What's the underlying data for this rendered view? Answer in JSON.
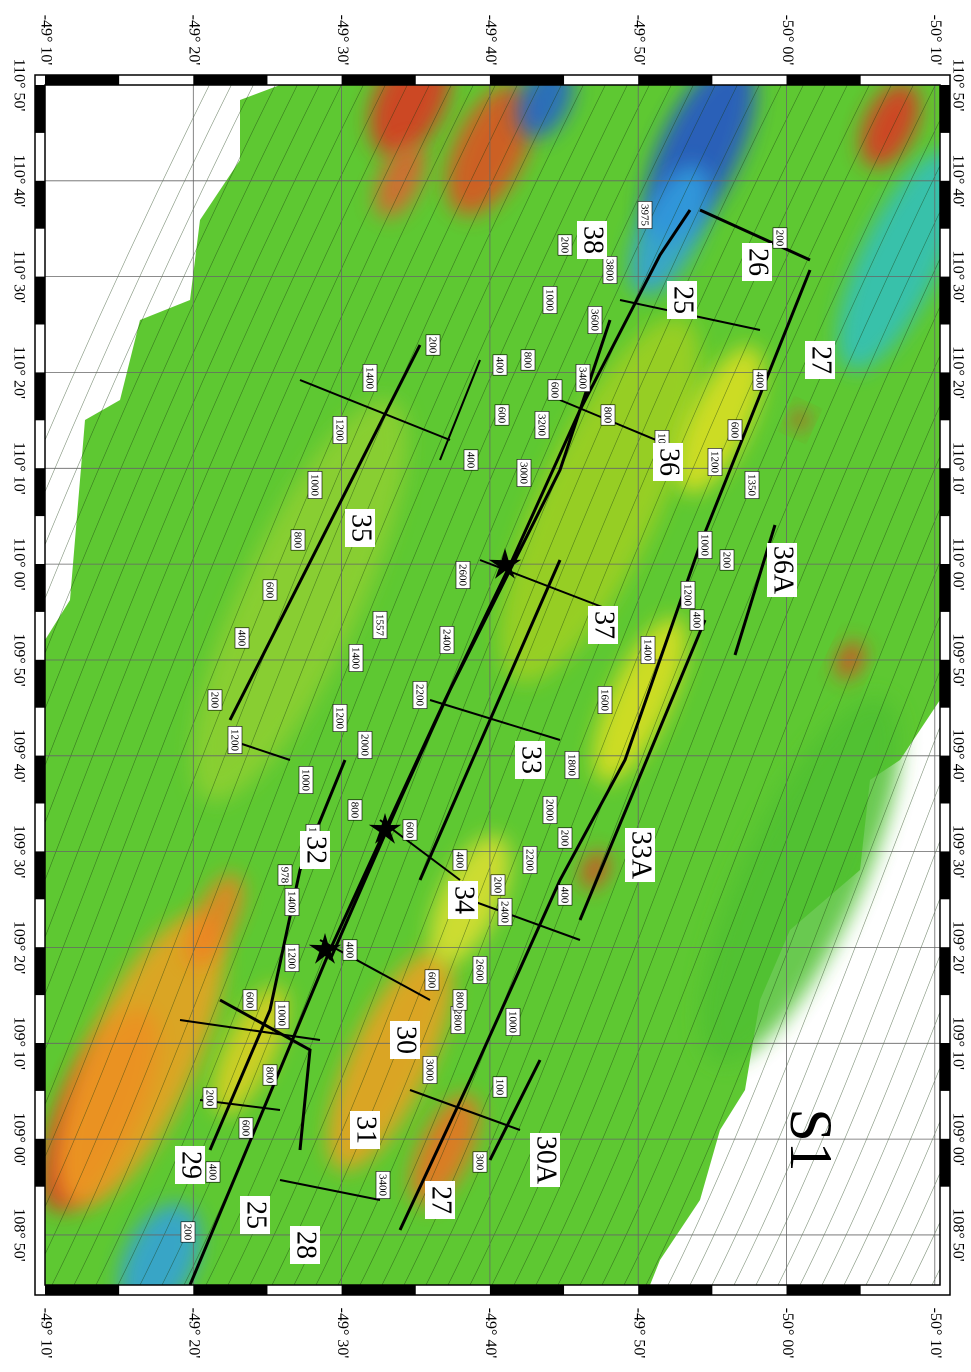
{
  "frame": {
    "latitude_labels": [
      "-49° 10'",
      "-49° 20'",
      "-49° 30'",
      "-49° 40'",
      "-49° 50'",
      "-50° 00'",
      "-50° 10'"
    ],
    "longitude_labels": [
      "110° 50'",
      "110° 40'",
      "110° 30'",
      "110° 20'",
      "110° 10'",
      "110° 00'",
      "109° 50'",
      "109° 40'",
      "109° 30'",
      "109° 20'",
      "109° 10'",
      "109° 00'",
      "108° 50'"
    ]
  },
  "map_label": "S1",
  "anomaly_labels": [
    "38",
    "25",
    "26",
    "27",
    "35",
    "36",
    "36A",
    "37",
    "33",
    "32",
    "34",
    "30",
    "33A",
    "31",
    "30A",
    "27",
    "29",
    "25",
    "28"
  ],
  "contour_labels": [
    "200",
    "400",
    "600",
    "200",
    "800",
    "1000",
    "600",
    "1200",
    "1400",
    "978",
    "1600",
    "800",
    "1000",
    "1200",
    "200",
    "400",
    "600",
    "800",
    "1000",
    "1200",
    "1400",
    "1557",
    "1400",
    "1200",
    "2000",
    "2200",
    "2400",
    "2600",
    "3000",
    "3200",
    "3400",
    "3600",
    "3800",
    "3975",
    "200",
    "1000",
    "800",
    "600",
    "400",
    "200",
    "400",
    "600",
    "800",
    "1000",
    "1200",
    "1350",
    "1000",
    "1200",
    "1400",
    "1600",
    "1800",
    "2000",
    "2200",
    "2400",
    "2600",
    "2800",
    "3000",
    "3400",
    "200",
    "400",
    "100",
    "300",
    "1000",
    "800",
    "600",
    "400",
    "600",
    "400",
    "200",
    "200",
    "400",
    "600",
    "200",
    "400"
  ]
}
